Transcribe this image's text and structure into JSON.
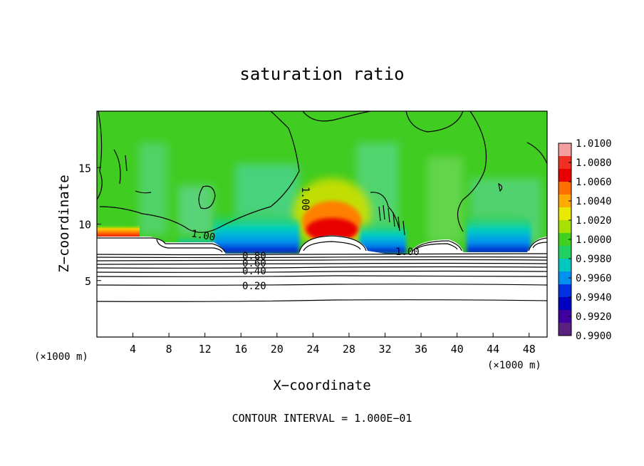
{
  "chart_data": {
    "type": "heatmap",
    "title": "saturation ratio",
    "xlabel": "X−coordinate",
    "ylabel": "Z−coordinate",
    "x_unit_left": "(×1000 m)",
    "x_unit_right": "(×1000 m)",
    "footer": "CONTOUR INTERVAL = 1.000E−01",
    "xlim": [
      0,
      50
    ],
    "ylim": [
      0,
      20
    ],
    "x_ticks": [
      4,
      8,
      12,
      16,
      20,
      24,
      28,
      32,
      36,
      40,
      44,
      48
    ],
    "y_ticks": [
      5,
      10,
      15
    ],
    "grid": false,
    "colorbar": {
      "placement": "right",
      "levels": [
        "1.0100",
        "1.0080",
        "1.0060",
        "1.0040",
        "1.0020",
        "1.0000",
        "0.9980",
        "0.9960",
        "0.9940",
        "0.9920",
        "0.9900"
      ],
      "colors": [
        "#f4a0a0",
        "#f03020",
        "#e80000",
        "#ff7000",
        "#ffaa00",
        "#e8e800",
        "#a8e000",
        "#40d020",
        "#20d060",
        "#00c8c0",
        "#0090f0",
        "#0030e0",
        "#0000c0",
        "#4000a0",
        "#5a2080"
      ]
    },
    "field_colors": {
      "background": "#40cc20",
      "supersaturated": "#e80000",
      "near_saturated": "#ff8000",
      "subsaturated": "#00c8e0",
      "dry": "#0030e0",
      "cloud_free": "#ffffff"
    },
    "contour_labels": [
      "1.00",
      "1.00",
      "1.00",
      "0.80",
      "0.60",
      "0.40",
      "0.20"
    ]
  }
}
